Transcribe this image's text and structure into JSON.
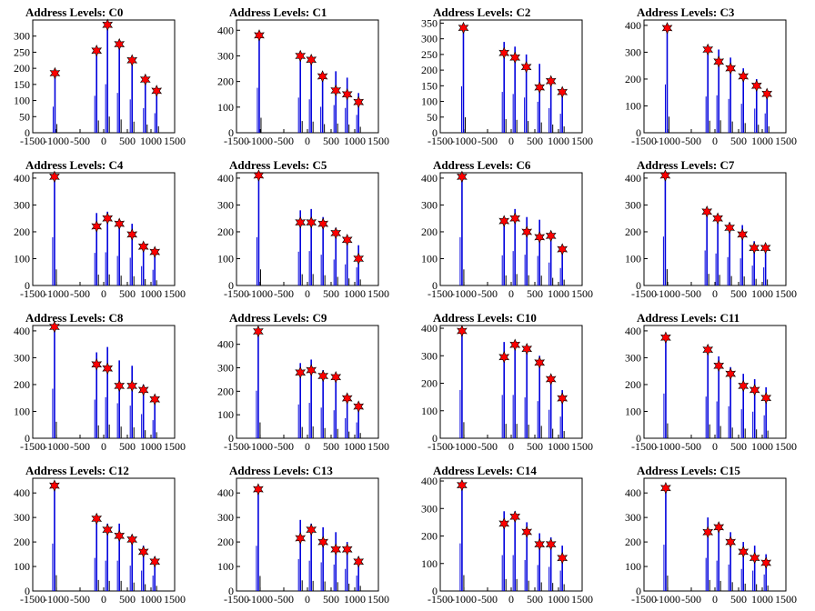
{
  "chart_data": [
    {
      "type": "bar",
      "title": "Address Levels: C0",
      "xlim": [
        -1500,
        1500
      ],
      "ylim": [
        0,
        350
      ],
      "yticks": [
        0,
        50,
        100,
        150,
        200,
        250,
        300
      ],
      "x": [
        -1030,
        -150,
        80,
        330,
        600,
        880,
        1120
      ],
      "values": [
        180,
        255,
        335,
        275,
        230,
        170,
        135
      ],
      "markers": [
        185,
        255,
        335,
        275,
        225,
        165,
        130
      ]
    },
    {
      "type": "bar",
      "title": "Address Levels: C1",
      "xlim": [
        -1500,
        1500
      ],
      "ylim": [
        0,
        440
      ],
      "yticks": [
        0,
        100,
        200,
        300,
        400
      ],
      "x": [
        -1020,
        -150,
        80,
        320,
        600,
        840,
        1080
      ],
      "values": [
        390,
        305,
        290,
        225,
        240,
        215,
        155
      ],
      "markers": [
        380,
        300,
        285,
        220,
        165,
        150,
        120
      ]
    },
    {
      "type": "bar",
      "title": "Address Levels: C2",
      "xlim": [
        -1500,
        1500
      ],
      "ylim": [
        0,
        360
      ],
      "yticks": [
        0,
        50,
        100,
        150,
        200,
        250,
        300,
        350
      ],
      "x": [
        -1010,
        -150,
        80,
        320,
        600,
        840,
        1080
      ],
      "values": [
        330,
        290,
        275,
        250,
        220,
        175,
        135
      ],
      "markers": [
        335,
        255,
        240,
        210,
        145,
        165,
        130
      ]
    },
    {
      "type": "bar",
      "title": "Address Levels: C3",
      "xlim": [
        -1500,
        1500
      ],
      "ylim": [
        0,
        420
      ],
      "yticks": [
        0,
        100,
        200,
        300,
        400
      ],
      "x": [
        -1010,
        -150,
        80,
        330,
        600,
        880,
        1100
      ],
      "values": [
        400,
        300,
        310,
        280,
        240,
        200,
        160
      ],
      "markers": [
        390,
        310,
        265,
        240,
        210,
        175,
        145
      ]
    },
    {
      "type": "bar",
      "title": "Address Levels: C4",
      "xlim": [
        -1500,
        1500
      ],
      "ylim": [
        0,
        420
      ],
      "yticks": [
        0,
        100,
        200,
        300,
        400
      ],
      "x": [
        -1040,
        -150,
        80,
        330,
        600,
        840,
        1080
      ],
      "values": [
        400,
        270,
        275,
        245,
        230,
        160,
        130
      ],
      "markers": [
        405,
        220,
        250,
        230,
        190,
        145,
        125
      ]
    },
    {
      "type": "bar",
      "title": "Address Levels: C5",
      "xlim": [
        -1500,
        1500
      ],
      "ylim": [
        0,
        420
      ],
      "yticks": [
        0,
        100,
        200,
        300,
        400
      ],
      "x": [
        -1030,
        -150,
        80,
        330,
        600,
        840,
        1080
      ],
      "values": [
        400,
        280,
        285,
        255,
        215,
        175,
        150
      ],
      "markers": [
        410,
        235,
        235,
        230,
        195,
        170,
        100
      ]
    },
    {
      "type": "bar",
      "title": "Address Levels: C6",
      "xlim": [
        -1500,
        1500
      ],
      "ylim": [
        0,
        420
      ],
      "yticks": [
        0,
        100,
        200,
        300,
        400
      ],
      "x": [
        -1040,
        -150,
        80,
        330,
        600,
        840,
        1080
      ],
      "values": [
        400,
        250,
        285,
        255,
        245,
        190,
        145
      ],
      "markers": [
        405,
        240,
        250,
        200,
        180,
        185,
        135
      ]
    },
    {
      "type": "bar",
      "title": "Address Levels: C7",
      "xlim": [
        -1500,
        1500
      ],
      "ylim": [
        0,
        420
      ],
      "yticks": [
        0,
        100,
        200,
        300,
        400
      ],
      "x": [
        -1050,
        -170,
        60,
        310,
        580,
        830,
        1070
      ],
      "values": [
        405,
        290,
        265,
        235,
        225,
        165,
        150
      ],
      "markers": [
        410,
        275,
        250,
        215,
        190,
        140,
        140
      ]
    },
    {
      "type": "bar",
      "title": "Address Levels: C8",
      "xlim": [
        -1500,
        1500
      ],
      "ylim": [
        0,
        420
      ],
      "yticks": [
        0,
        100,
        200,
        300,
        400
      ],
      "x": [
        -1040,
        -150,
        80,
        330,
        600,
        840,
        1080
      ],
      "values": [
        410,
        320,
        340,
        290,
        270,
        200,
        150
      ],
      "markers": [
        415,
        275,
        260,
        195,
        195,
        180,
        145
      ]
    },
    {
      "type": "bar",
      "title": "Address Levels: C9",
      "xlim": [
        -1500,
        1500
      ],
      "ylim": [
        0,
        480
      ],
      "yticks": [
        0,
        100,
        200,
        300,
        400
      ],
      "x": [
        -1040,
        -150,
        80,
        330,
        600,
        840,
        1080
      ],
      "values": [
        450,
        320,
        335,
        290,
        265,
        190,
        150
      ],
      "markers": [
        455,
        280,
        290,
        265,
        260,
        170,
        135
      ]
    },
    {
      "type": "bar",
      "title": "Address Levels: C10",
      "xlim": [
        -1500,
        1500
      ],
      "ylim": [
        0,
        410
      ],
      "yticks": [
        0,
        100,
        200,
        300,
        400
      ],
      "x": [
        -1040,
        -150,
        80,
        330,
        600,
        840,
        1080
      ],
      "values": [
        390,
        350,
        350,
        330,
        300,
        230,
        175
      ],
      "markers": [
        390,
        295,
        340,
        325,
        275,
        215,
        145
      ]
    },
    {
      "type": "bar",
      "title": "Address Levels: C11",
      "xlim": [
        -1500,
        1500
      ],
      "ylim": [
        0,
        420
      ],
      "yticks": [
        0,
        100,
        200,
        300,
        400
      ],
      "x": [
        -1040,
        -150,
        80,
        330,
        600,
        840,
        1080
      ],
      "values": [
        370,
        345,
        305,
        265,
        240,
        220,
        190
      ],
      "markers": [
        375,
        330,
        270,
        240,
        195,
        180,
        150
      ]
    },
    {
      "type": "bar",
      "title": "Address Levels: C12",
      "xlim": [
        -1500,
        1500
      ],
      "ylim": [
        0,
        460
      ],
      "yticks": [
        0,
        100,
        200,
        300,
        400
      ],
      "x": [
        -1040,
        -150,
        80,
        330,
        600,
        840,
        1080
      ],
      "values": [
        430,
        300,
        275,
        275,
        230,
        185,
        140
      ],
      "markers": [
        430,
        295,
        250,
        225,
        210,
        160,
        120
      ]
    },
    {
      "type": "bar",
      "title": "Address Levels: C13",
      "xlim": [
        -1500,
        1500
      ],
      "ylim": [
        0,
        460
      ],
      "yticks": [
        0,
        100,
        200,
        300,
        400
      ],
      "x": [
        -1040,
        -150,
        80,
        330,
        600,
        840,
        1080
      ],
      "values": [
        410,
        290,
        275,
        260,
        240,
        200,
        140
      ],
      "markers": [
        415,
        215,
        250,
        200,
        170,
        170,
        120
      ]
    },
    {
      "type": "bar",
      "title": "Address Levels: C14",
      "xlim": [
        -1500,
        1500
      ],
      "ylim": [
        0,
        410
      ],
      "yticks": [
        0,
        100,
        200,
        300,
        400
      ],
      "x": [
        -1040,
        -150,
        80,
        330,
        600,
        840,
        1080
      ],
      "values": [
        385,
        290,
        290,
        250,
        210,
        195,
        165
      ],
      "markers": [
        385,
        245,
        270,
        215,
        170,
        170,
        120
      ]
    },
    {
      "type": "bar",
      "title": "Address Levels: C15",
      "xlim": [
        -1500,
        1500
      ],
      "ylim": [
        0,
        460
      ],
      "yticks": [
        0,
        100,
        200,
        300,
        400
      ],
      "x": [
        -1040,
        -150,
        80,
        330,
        600,
        840,
        1080
      ],
      "values": [
        420,
        300,
        275,
        240,
        200,
        185,
        150
      ],
      "markers": [
        420,
        240,
        260,
        200,
        160,
        135,
        115
      ]
    }
  ]
}
